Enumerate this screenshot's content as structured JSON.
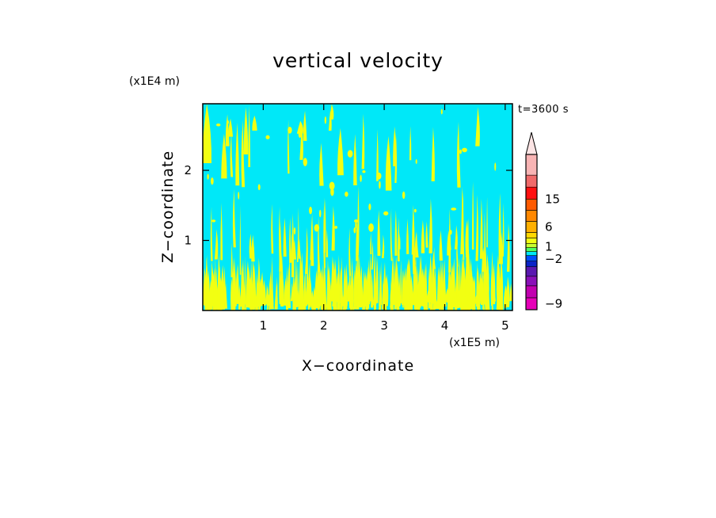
{
  "chart_data": {
    "type": "heatmap",
    "title": "vertical velocity",
    "xlabel": "X−coordinate",
    "ylabel": "Z−coordinate",
    "x_unit_label": "(x1E5 m)",
    "y_unit_label": "(x1E4 m)",
    "time_label": "t=3600 s",
    "xlim": [
      0,
      5.12
    ],
    "ylim": [
      0,
      2.95
    ],
    "x_ticks": [
      {
        "v": 1,
        "label": "1"
      },
      {
        "v": 2,
        "label": "2"
      },
      {
        "v": 3,
        "label": "3"
      },
      {
        "v": 4,
        "label": "4"
      },
      {
        "v": 5,
        "label": "5"
      }
    ],
    "y_ticks": [
      {
        "v": 1,
        "label": "1"
      },
      {
        "v": 2,
        "label": "2"
      }
    ],
    "background_color": "#00e8f8",
    "positive_color": "#f2ff12",
    "colorbar": {
      "colors": [
        "#e600b8",
        "#c200b0",
        "#8a10b8",
        "#5a18b0",
        "#0a24c8",
        "#0050ff",
        "#00e8f8",
        "#50ff60",
        "#c8ff30",
        "#f2ff12",
        "#ffd800",
        "#ffb000",
        "#ff8800",
        "#ff5a00",
        "#ff1010",
        "#f06a6a",
        "#f8b4b4"
      ],
      "labels": [
        {
          "v": "15",
          "level": 14
        },
        {
          "v": "6",
          "level": 11.5
        },
        {
          "v": "1",
          "level": 8.2
        },
        {
          "v": "−2",
          "level": 5.4
        },
        {
          "v": "−9",
          "level": 0.5
        }
      ],
      "extend": "max"
    },
    "grid": false
  }
}
